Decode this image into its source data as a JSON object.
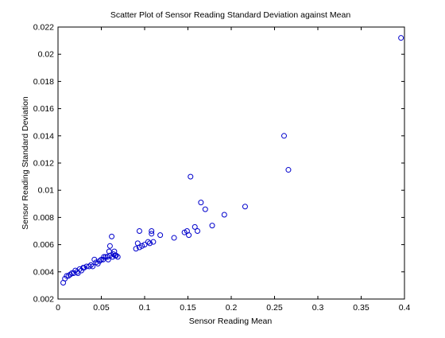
{
  "chart_data": {
    "type": "scatter",
    "title": "Scatter Plot of Sensor Reading Standard Deviation against Mean",
    "xlabel": "Sensor Reading Mean",
    "ylabel": "Sensor Reading Standard Deviation",
    "xlim": [
      0,
      0.4
    ],
    "ylim": [
      0.002,
      0.022
    ],
    "xticks": [
      "0",
      "0.05",
      "0.1",
      "0.15",
      "0.2",
      "0.25",
      "0.3",
      "0.35",
      "0.4"
    ],
    "yticks": [
      "0.002",
      "0.004",
      "0.006",
      "0.008",
      "0.01",
      "0.012",
      "0.014",
      "0.016",
      "0.018",
      "0.02",
      "0.022"
    ],
    "grid": false,
    "marker_color": "#0000cc",
    "series": [
      {
        "x": [
          0.006,
          0.008,
          0.01,
          0.012,
          0.014,
          0.016,
          0.018,
          0.02,
          0.022,
          0.023,
          0.025,
          0.027,
          0.029,
          0.03,
          0.033,
          0.036,
          0.038,
          0.04,
          0.042,
          0.044,
          0.046,
          0.048,
          0.05,
          0.052,
          0.053,
          0.055,
          0.057,
          0.058,
          0.059,
          0.06,
          0.06,
          0.062,
          0.063,
          0.064,
          0.065,
          0.066,
          0.067,
          0.069,
          0.09,
          0.092,
          0.094,
          0.094,
          0.097,
          0.1,
          0.104,
          0.106,
          0.108,
          0.108,
          0.11,
          0.118,
          0.134,
          0.146,
          0.149,
          0.151,
          0.153,
          0.158,
          0.161,
          0.165,
          0.17,
          0.178,
          0.192,
          0.216,
          0.261,
          0.266,
          0.396
        ],
        "y": [
          0.0032,
          0.0035,
          0.0037,
          0.0037,
          0.0038,
          0.0039,
          0.0039,
          0.0041,
          0.004,
          0.0039,
          0.0042,
          0.0041,
          0.0043,
          0.0043,
          0.0044,
          0.0044,
          0.0045,
          0.0044,
          0.0049,
          0.0047,
          0.0046,
          0.0048,
          0.0049,
          0.0049,
          0.0051,
          0.0051,
          0.0051,
          0.0049,
          0.0055,
          0.0059,
          0.0052,
          0.0066,
          0.0051,
          0.0053,
          0.0055,
          0.0052,
          0.0052,
          0.0051,
          0.0057,
          0.0061,
          0.007,
          0.0058,
          0.0059,
          0.006,
          0.0062,
          0.0061,
          0.007,
          0.0068,
          0.0062,
          0.0067,
          0.0065,
          0.0069,
          0.007,
          0.0067,
          0.011,
          0.0073,
          0.007,
          0.0091,
          0.0086,
          0.0074,
          0.0082,
          0.0088,
          0.014,
          0.0115,
          0.0212
        ]
      }
    ]
  }
}
